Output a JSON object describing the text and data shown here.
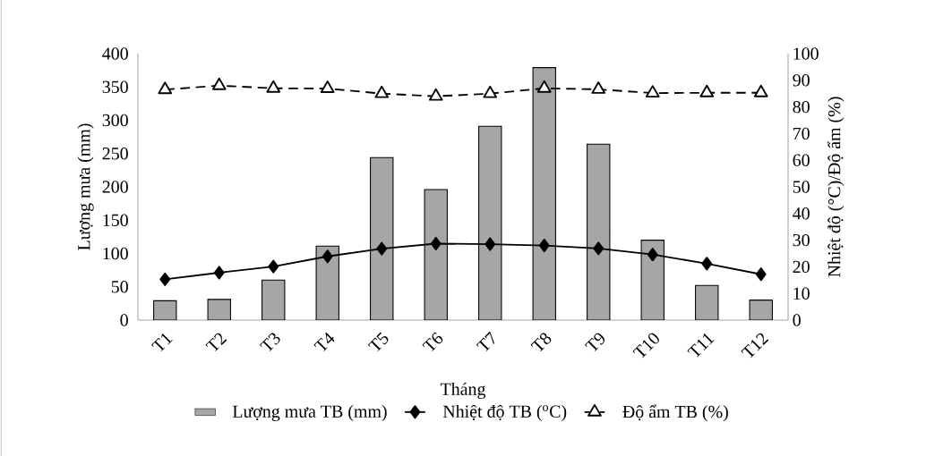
{
  "chart_data": {
    "type": "bar",
    "xlabel": "Tháng",
    "ylabel": "Lượng mưa (mm)",
    "y2label": "Nhiệt độ (°C)/Độ ẩm (%)",
    "categories": [
      "T1",
      "T2",
      "T3",
      "T4",
      "T5",
      "T6",
      "T7",
      "T8",
      "T9",
      "T10",
      "T11",
      "T12"
    ],
    "ylim": [
      0,
      400
    ],
    "yticks": [
      0,
      50,
      100,
      150,
      200,
      250,
      300,
      350,
      400
    ],
    "y2lim": [
      0,
      100
    ],
    "y2ticks": [
      0,
      10,
      20,
      30,
      40,
      50,
      60,
      70,
      80,
      90,
      100
    ],
    "legend": "bottom",
    "series": [
      {
        "name": "Lượng mưa TB (mm)",
        "color": "#a6a6a6",
        "values": [
          29,
          31,
          60,
          111,
          244,
          196,
          291,
          379,
          264,
          120,
          52,
          30
        ]
      },
      {
        "name": "Nhiệt độ TB ($^{o}$C)",
        "type": "line",
        "axis": "y2",
        "color": "#000000",
        "marker": "diamond",
        "line_style": "solid",
        "values": [
          15.3,
          17.8,
          20.1,
          23.9,
          26.8,
          28.7,
          28.5,
          28.0,
          26.9,
          24.6,
          21.2,
          17.2
        ]
      },
      {
        "name": "Độ ẩm TB (%)",
        "type": "line",
        "axis": "y2",
        "color": "#000000",
        "marker": "triangle",
        "line_style": "dashed",
        "values": [
          86.5,
          88.0,
          87.0,
          86.9,
          85.0,
          84.0,
          85.0,
          87.0,
          86.6,
          85.2,
          85.3,
          85.3
        ]
      }
    ]
  }
}
